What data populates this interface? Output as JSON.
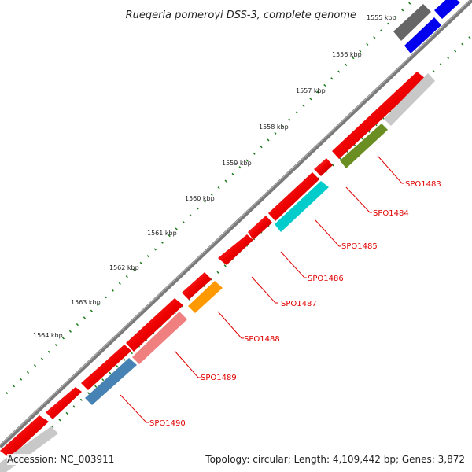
{
  "title": "Ruegeria pomeroyi DSS-3, complete genome",
  "footer": {
    "accession_label": "Accession:",
    "accession": "NC_003911",
    "topology_label": "Topology:",
    "topology": "circular",
    "length_label": "Length:",
    "length": "4,109,442 bp",
    "genes_label": "Genes:",
    "genes": "3,872"
  },
  "ticks": [
    "1555 kbp",
    "1556 kbp",
    "1557 kbp",
    "1558 kbp",
    "1559 kbp",
    "1560 kbp",
    "1561 kbp",
    "1562 kbp",
    "1563 kbp",
    "1564 kbp"
  ],
  "gene_labels": [
    "SPO1483",
    "SPO1484",
    "SPO1485",
    "SPO1486",
    "SPO1487",
    "SPO1488",
    "SPO1489",
    "SPO1490"
  ],
  "colors": {
    "backbone": "#888888",
    "forward_gene": "#ff0000",
    "tick_mark": "#1a7a1a",
    "label": "#e00000",
    "blue_gene": "#0000ff",
    "gray_gene": "#666666",
    "light_gray_gene": "#c8c8c8",
    "olive_gene": "#6b8e23",
    "cyan_gene": "#00cccc",
    "orange_gene": "#ff9900",
    "pink_gene": "#f08080",
    "steel_gene": "#4682b4"
  }
}
